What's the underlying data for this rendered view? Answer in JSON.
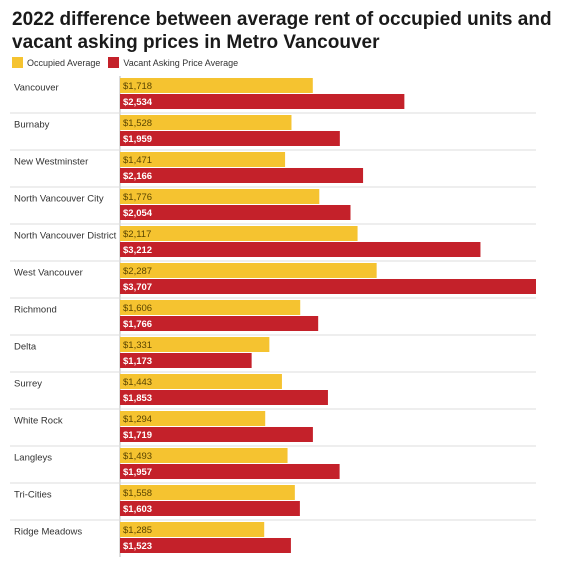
{
  "chart_data": {
    "type": "bar",
    "orientation": "horizontal",
    "title": "2022 difference between average rent of occupied units and vacant asking prices in Metro Vancouver",
    "categories": [
      "Vancouver",
      "Burnaby",
      "New Westminster",
      "North Vancouver City",
      "North Vancouver District",
      "West Vancouver",
      "Richmond",
      "Delta",
      "Surrey",
      "White Rock",
      "Langleys",
      "Tri-Cities",
      "Ridge Meadows"
    ],
    "series": [
      {
        "name": "Occupied Average",
        "color": "#f5c330",
        "values": [
          1718,
          1528,
          1471,
          1776,
          2117,
          2287,
          1606,
          1331,
          1443,
          1294,
          1493,
          1558,
          1285
        ],
        "labels": [
          "$1,718",
          "$1,528",
          "$1,471",
          "$1,776",
          "$2,117",
          "$2,287",
          "$1,606",
          "$1,331",
          "$1,443",
          "$1,294",
          "$1,493",
          "$1,558",
          "$1,285"
        ]
      },
      {
        "name": "Vacant Asking Price Average",
        "color": "#c4212a",
        "values": [
          2534,
          1959,
          2166,
          2054,
          3212,
          3707,
          1766,
          1173,
          1853,
          1719,
          1957,
          1603,
          1523
        ],
        "labels": [
          "$2,534",
          "$1,959",
          "$2,166",
          "$2,054",
          "$3,212",
          "$3,707",
          "$1,766",
          "$1,173",
          "$1,853",
          "$1,719",
          "$1,957",
          "$1,603",
          "$1,523"
        ]
      }
    ],
    "xlim": [
      0,
      3707
    ],
    "grid": false,
    "legend_position": "top-left"
  }
}
